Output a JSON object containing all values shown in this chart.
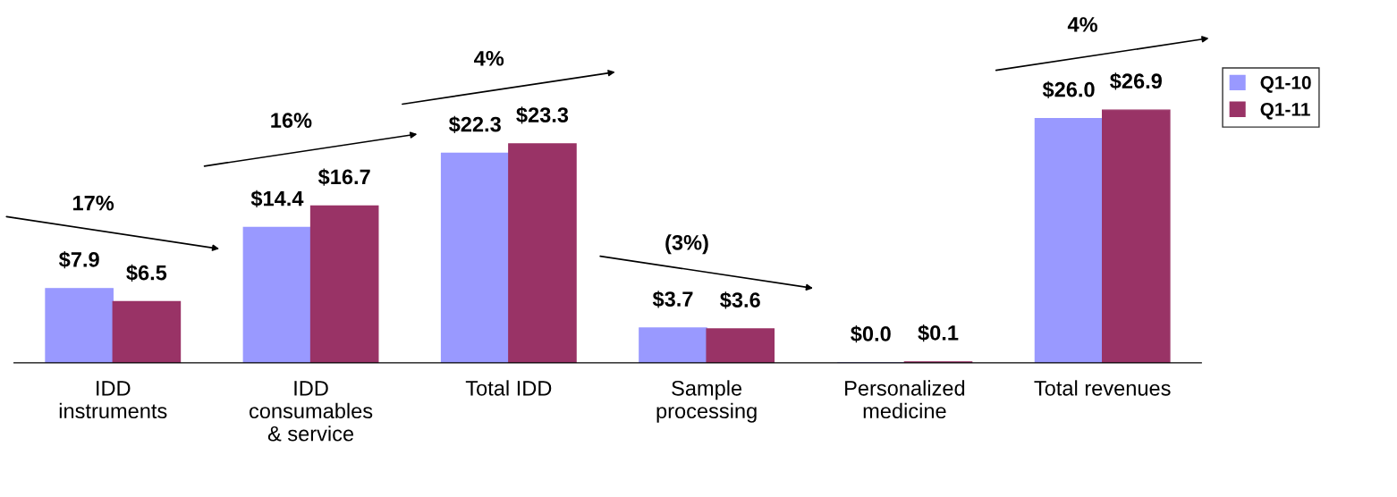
{
  "chart_data": {
    "type": "bar",
    "categories": [
      "IDD\ninstruments",
      "IDD\nconsumables\n& service",
      "Total IDD",
      "Sample\nprocessing",
      "Personalized\nmedicine",
      "Total revenues"
    ],
    "series": [
      {
        "name": "Q1-10",
        "color": "#9999ff",
        "values": [
          7.9,
          14.4,
          22.3,
          3.7,
          0.0,
          26.0
        ],
        "value_labels": [
          "$7.9",
          "$14.4",
          "$22.3",
          "$3.7",
          "$0.0",
          "$26.0"
        ]
      },
      {
        "name": "Q1-11",
        "color": "#993366",
        "values": [
          6.5,
          16.7,
          23.3,
          3.6,
          0.1,
          26.9
        ],
        "value_labels": [
          "$6.5",
          "$16.7",
          "$23.3",
          "$3.6",
          "$0.1",
          "$26.9"
        ]
      }
    ],
    "annotations": [
      "17%",
      "16%",
      "4%",
      "(3%)",
      "4%"
    ],
    "legend": "top right"
  }
}
